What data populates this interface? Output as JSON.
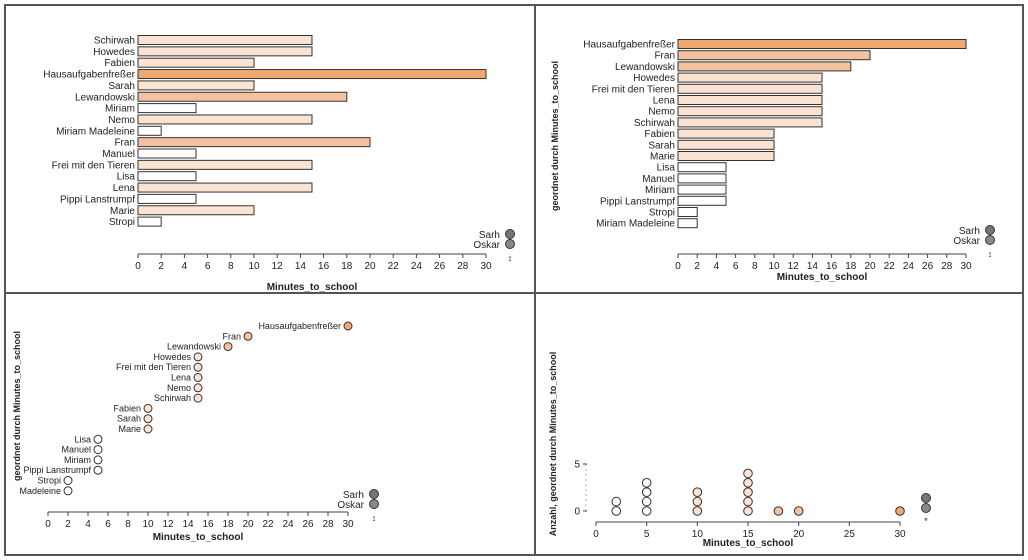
{
  "legend": {
    "items": [
      {
        "label": "Sarh",
        "color": "#777777"
      },
      {
        "label": "Oskar",
        "color": "#888888"
      }
    ],
    "extra_symbol": "↕",
    "extra_symbol_star": "*"
  },
  "colors": {
    "light": "#fbe3d4",
    "mid": "#f4c2a0",
    "strong": "#f0a870",
    "stroke": "#333333"
  },
  "chart_data": [
    {
      "type": "bar",
      "panel": "top-left",
      "categories": [
        "Schirwah",
        "Howedes",
        "Fabien",
        "Hausaufgabenfreßer",
        "Sarah",
        "Lewandowski",
        "Miriam",
        "Nemo",
        "Miriam Madeleine",
        "Fran",
        "Manuel",
        "Frei mit den Tieren",
        "Lisa",
        "Lena",
        "Pippi Lanstrumpf",
        "Marie",
        "Stropi"
      ],
      "values": [
        15,
        15,
        10,
        30,
        10,
        18,
        5,
        15,
        2,
        20,
        5,
        15,
        5,
        15,
        5,
        10,
        2
      ],
      "xlabel": "Minutes_to_school",
      "ylabel": "",
      "xlim": [
        0,
        30
      ],
      "ticks": [
        0,
        2,
        4,
        6,
        8,
        10,
        12,
        14,
        16,
        18,
        20,
        22,
        24,
        26,
        28,
        30
      ]
    },
    {
      "type": "bar",
      "panel": "top-right",
      "categories": [
        "Hausaufgabenfreßer",
        "Fran",
        "Lewandowski",
        "Howedes",
        "Frei mit den Tieren",
        "Lena",
        "Nemo",
        "Schirwah",
        "Fabien",
        "Sarah",
        "Marie",
        "Lisa",
        "Manuel",
        "Miriam",
        "Pippi Lanstrumpf",
        "Stropi",
        "Miriam Madeleine"
      ],
      "values": [
        30,
        20,
        18,
        15,
        15,
        15,
        15,
        15,
        10,
        10,
        10,
        5,
        5,
        5,
        5,
        2,
        2
      ],
      "xlabel": "Minutes_to_school",
      "ylabel": "geordnet durch Minutes_to_school",
      "xlim": [
        0,
        30
      ],
      "ticks": [
        0,
        2,
        4,
        6,
        8,
        10,
        12,
        14,
        16,
        18,
        20,
        22,
        24,
        26,
        28,
        30
      ]
    },
    {
      "type": "scatter",
      "panel": "bottom-left",
      "categories": [
        "Hausaufgabenfreßer",
        "Fran",
        "Lewandowski",
        "Howedes",
        "Frei mit den Tieren",
        "Lena",
        "Nemo",
        "Schirwah",
        "Fabien",
        "Sarah",
        "Marie",
        "Lisa",
        "Manuel",
        "Miriam",
        "Pippi Lanstrumpf",
        "Stropi",
        "Madeleine"
      ],
      "values": [
        30,
        20,
        18,
        15,
        15,
        15,
        15,
        15,
        10,
        10,
        10,
        5,
        5,
        5,
        5,
        2,
        2
      ],
      "xlabel": "Minutes_to_school",
      "ylabel": "geordnet durch Minutes_to_school",
      "xlim": [
        0,
        30
      ],
      "ticks": [
        0,
        2,
        4,
        6,
        8,
        10,
        12,
        14,
        16,
        18,
        20,
        22,
        24,
        26,
        28,
        30
      ]
    },
    {
      "type": "scatter",
      "panel": "bottom-right",
      "x": [
        2,
        5,
        10,
        15,
        18,
        20,
        30
      ],
      "counts": [
        2,
        4,
        3,
        5,
        1,
        1,
        1
      ],
      "xlabel": "Minutes_to_school",
      "ylabel": "Anzahl, geordnet durch Minutes_to_school",
      "xlim": [
        0,
        30
      ],
      "ylim": [
        0,
        5
      ],
      "xticks": [
        0,
        5,
        10,
        15,
        20,
        25,
        30
      ],
      "yticks": [
        0,
        5
      ]
    }
  ]
}
